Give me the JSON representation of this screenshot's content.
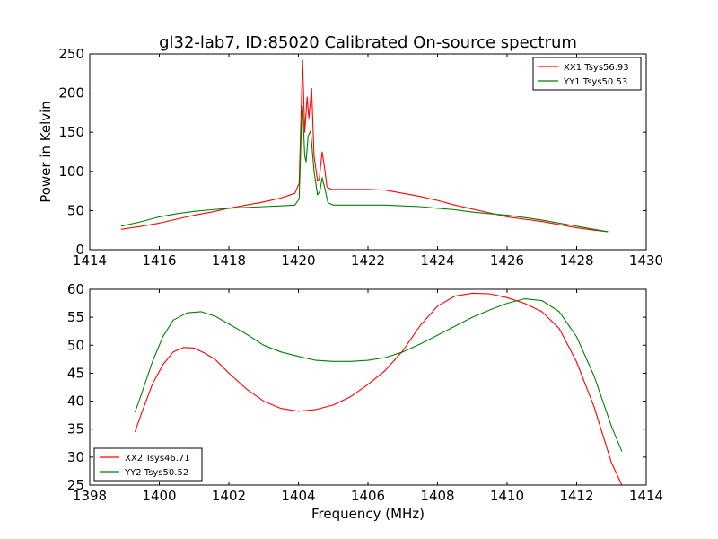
{
  "chart_data": [
    {
      "type": "line",
      "title": "gl32-lab7, ID:85020 Calibrated On-source spectrum",
      "xlabel": "",
      "ylabel": "Power in Kelvin",
      "xlim": [
        1414,
        1430
      ],
      "ylim": [
        0,
        250
      ],
      "xticks": [
        "1414",
        "1416",
        "1418",
        "1420",
        "1422",
        "1424",
        "1426",
        "1428",
        "1430"
      ],
      "yticks": [
        "0",
        "50",
        "100",
        "150",
        "200",
        "250"
      ],
      "legend_position": "top-right",
      "grid": false,
      "series": [
        {
          "name": "XX1 Tsys56.93",
          "color": "#ff0000",
          "points": [
            [
              1414.9,
              26
            ],
            [
              1415.5,
              30
            ],
            [
              1416,
              34
            ],
            [
              1416.5,
              39
            ],
            [
              1417,
              44
            ],
            [
              1417.5,
              48
            ],
            [
              1418,
              53
            ],
            [
              1418.5,
              57
            ],
            [
              1419,
              61
            ],
            [
              1419.5,
              66
            ],
            [
              1419.9,
              72
            ],
            [
              1420.02,
              85
            ],
            [
              1420.08,
              180
            ],
            [
              1420.12,
              242
            ],
            [
              1420.18,
              150
            ],
            [
              1420.25,
              195
            ],
            [
              1420.3,
              168
            ],
            [
              1420.38,
              206
            ],
            [
              1420.45,
              120
            ],
            [
              1420.55,
              88
            ],
            [
              1420.6,
              90
            ],
            [
              1420.68,
              125
            ],
            [
              1420.75,
              105
            ],
            [
              1420.82,
              80
            ],
            [
              1420.95,
              77
            ],
            [
              1421.5,
              77
            ],
            [
              1422,
              77
            ],
            [
              1422.5,
              76
            ],
            [
              1423,
              72
            ],
            [
              1423.5,
              68
            ],
            [
              1424,
              63
            ],
            [
              1424.5,
              57
            ],
            [
              1425,
              52
            ],
            [
              1425.5,
              47
            ],
            [
              1426,
              42
            ],
            [
              1426.5,
              39
            ],
            [
              1427,
              36
            ],
            [
              1427.5,
              32
            ],
            [
              1428,
              28
            ],
            [
              1428.5,
              25
            ],
            [
              1428.9,
              23
            ]
          ]
        },
        {
          "name": "YY1 Tsys50.53",
          "color": "#008000",
          "points": [
            [
              1414.9,
              30
            ],
            [
              1415.5,
              36
            ],
            [
              1416,
              42
            ],
            [
              1416.5,
              46
            ],
            [
              1417,
              49
            ],
            [
              1417.5,
              51
            ],
            [
              1418,
              53
            ],
            [
              1418.5,
              54
            ],
            [
              1419,
              55
            ],
            [
              1419.5,
              56
            ],
            [
              1419.9,
              57
            ],
            [
              1420.02,
              65
            ],
            [
              1420.08,
              150
            ],
            [
              1420.12,
              183
            ],
            [
              1420.18,
              120
            ],
            [
              1420.22,
              112
            ],
            [
              1420.28,
              145
            ],
            [
              1420.35,
              152
            ],
            [
              1420.45,
              100
            ],
            [
              1420.55,
              70
            ],
            [
              1420.62,
              75
            ],
            [
              1420.68,
              92
            ],
            [
              1420.75,
              80
            ],
            [
              1420.85,
              60
            ],
            [
              1421,
              57
            ],
            [
              1421.5,
              57
            ],
            [
              1422,
              57
            ],
            [
              1422.5,
              57
            ],
            [
              1423,
              56
            ],
            [
              1423.5,
              55
            ],
            [
              1424,
              53
            ],
            [
              1424.5,
              51
            ],
            [
              1425,
              48
            ],
            [
              1425.5,
              46
            ],
            [
              1426,
              44
            ],
            [
              1426.5,
              41
            ],
            [
              1427,
              38
            ],
            [
              1427.5,
              34
            ],
            [
              1428,
              30
            ],
            [
              1428.5,
              26
            ],
            [
              1428.9,
              23
            ]
          ]
        }
      ]
    },
    {
      "type": "line",
      "title": "",
      "xlabel": "Frequency (MHz)",
      "ylabel": "",
      "xlim": [
        1398,
        1414
      ],
      "ylim": [
        25,
        60
      ],
      "xticks": [
        "1398",
        "1400",
        "1402",
        "1404",
        "1406",
        "1408",
        "1410",
        "1412",
        "1414"
      ],
      "yticks": [
        "25",
        "30",
        "35",
        "40",
        "45",
        "50",
        "55",
        "60"
      ],
      "legend_position": "bottom-left",
      "grid": false,
      "series": [
        {
          "name": "XX2 Tsys46.71",
          "color": "#ff0000",
          "points": [
            [
              1399.3,
              34.5
            ],
            [
              1399.5,
              38
            ],
            [
              1399.8,
              43
            ],
            [
              1400.1,
              46.5
            ],
            [
              1400.4,
              48.8
            ],
            [
              1400.7,
              49.6
            ],
            [
              1401,
              49.5
            ],
            [
              1401.3,
              48.6
            ],
            [
              1401.6,
              47.5
            ],
            [
              1402,
              45
            ],
            [
              1402.5,
              42.2
            ],
            [
              1403,
              40
            ],
            [
              1403.5,
              38.7
            ],
            [
              1404,
              38.2
            ],
            [
              1404.5,
              38.5
            ],
            [
              1405,
              39.3
            ],
            [
              1405.5,
              40.8
            ],
            [
              1406,
              43
            ],
            [
              1406.5,
              45.5
            ],
            [
              1407,
              49
            ],
            [
              1407.5,
              53.5
            ],
            [
              1408,
              57
            ],
            [
              1408.5,
              58.8
            ],
            [
              1409,
              59.3
            ],
            [
              1409.5,
              59.2
            ],
            [
              1410,
              58.5
            ],
            [
              1410.5,
              57.5
            ],
            [
              1411,
              56
            ],
            [
              1411.5,
              53
            ],
            [
              1412,
              47
            ],
            [
              1412.5,
              39
            ],
            [
              1413,
              29
            ],
            [
              1413.3,
              25
            ]
          ]
        },
        {
          "name": "YY2 Tsys50.52",
          "color": "#008000",
          "points": [
            [
              1399.3,
              38
            ],
            [
              1399.5,
              41.5
            ],
            [
              1399.8,
              47
            ],
            [
              1400.1,
              51.5
            ],
            [
              1400.4,
              54.5
            ],
            [
              1400.8,
              55.8
            ],
            [
              1401.2,
              56
            ],
            [
              1401.6,
              55.2
            ],
            [
              1402,
              53.8
            ],
            [
              1402.5,
              52
            ],
            [
              1403,
              50
            ],
            [
              1403.5,
              48.8
            ],
            [
              1404,
              48
            ],
            [
              1404.5,
              47.3
            ],
            [
              1405,
              47.1
            ],
            [
              1405.5,
              47.1
            ],
            [
              1406,
              47.3
            ],
            [
              1406.5,
              47.8
            ],
            [
              1407,
              48.8
            ],
            [
              1407.5,
              50.2
            ],
            [
              1408,
              51.8
            ],
            [
              1408.5,
              53.4
            ],
            [
              1409,
              55
            ],
            [
              1409.5,
              56.3
            ],
            [
              1410,
              57.5
            ],
            [
              1410.5,
              58.3
            ],
            [
              1411,
              58
            ],
            [
              1411.5,
              56
            ],
            [
              1412,
              51.5
            ],
            [
              1412.5,
              44.5
            ],
            [
              1413,
              35.5
            ],
            [
              1413.3,
              31
            ]
          ]
        }
      ]
    }
  ]
}
